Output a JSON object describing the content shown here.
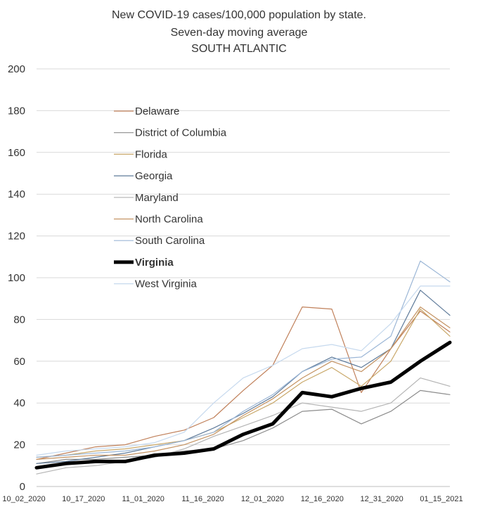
{
  "chart_data": {
    "type": "line",
    "title": [
      "New COVID-19 cases/100,000 population by state.",
      "Seven-day moving average",
      "SOUTH ATLANTIC"
    ],
    "xlabel": "",
    "ylabel": "",
    "ylim": [
      0,
      200
    ],
    "yticks": [
      0,
      20,
      40,
      60,
      80,
      100,
      120,
      140,
      160,
      180,
      200
    ],
    "x_tick_labels": [
      "10_02_2020",
      "10_17_2020",
      "11_01_2020",
      "11_16_2020",
      "12_01_2020",
      "12_16_2020",
      "12_31_2020",
      "01_15_2021"
    ],
    "grid": "horizontal",
    "legend_position": "top-left",
    "x": [
      "10_02_2020",
      "10_09_2020",
      "10_17_2020",
      "10_24_2020",
      "11_01_2020",
      "11_08_2020",
      "11_16_2020",
      "11_23_2020",
      "12_01_2020",
      "12_08_2020",
      "12_16_2020",
      "12_23_2020",
      "12_31_2020",
      "01_07_2021",
      "01_15_2021"
    ],
    "series": [
      {
        "name": "Delaware",
        "color": "#c0805a",
        "width": 1.2,
        "values": [
          13,
          16,
          19,
          20,
          24,
          27,
          33,
          46,
          58,
          86,
          85,
          45,
          66,
          84,
          74
        ]
      },
      {
        "name": "District of Columbia",
        "color": "#8c8c8c",
        "width": 1.2,
        "values": [
          11,
          13,
          13,
          14,
          15,
          17,
          18,
          22,
          28,
          36,
          37,
          30,
          36,
          46,
          44
        ]
      },
      {
        "name": "Florida",
        "color": "#c9a86a",
        "width": 1.2,
        "values": [
          14,
          15,
          17,
          18,
          20,
          22,
          26,
          33,
          40,
          50,
          57,
          48,
          60,
          85,
          72
        ]
      },
      {
        "name": "Georgia",
        "color": "#5f7b9a",
        "width": 1.2,
        "values": [
          11,
          12,
          14,
          16,
          19,
          22,
          28,
          35,
          43,
          55,
          62,
          57,
          66,
          94,
          82
        ]
      },
      {
        "name": "Maryland",
        "color": "#b4b4b4",
        "width": 1.2,
        "values": [
          6,
          9,
          10,
          12,
          14,
          18,
          24,
          29,
          34,
          40,
          38,
          36,
          40,
          52,
          48
        ]
      },
      {
        "name": "North Carolina",
        "color": "#c49363",
        "width": 1.2,
        "values": [
          13,
          14,
          15,
          15,
          17,
          20,
          25,
          34,
          42,
          52,
          60,
          55,
          66,
          86,
          76
        ]
      },
      {
        "name": "South Carolina",
        "color": "#9bb6d6",
        "width": 1.2,
        "values": [
          14,
          15,
          16,
          17,
          19,
          22,
          26,
          36,
          44,
          55,
          61,
          62,
          72,
          108,
          98
        ]
      },
      {
        "name": "Virginia",
        "color": "#000000",
        "width": 5,
        "values": [
          9,
          11,
          12,
          12,
          15,
          16,
          18,
          25,
          30,
          45,
          43,
          47,
          50,
          60,
          69
        ]
      },
      {
        "name": "West Virginia",
        "color": "#c6d9ee",
        "width": 1.2,
        "values": [
          15,
          17,
          18,
          19,
          21,
          26,
          40,
          52,
          58,
          66,
          68,
          65,
          78,
          96,
          96
        ]
      }
    ]
  }
}
